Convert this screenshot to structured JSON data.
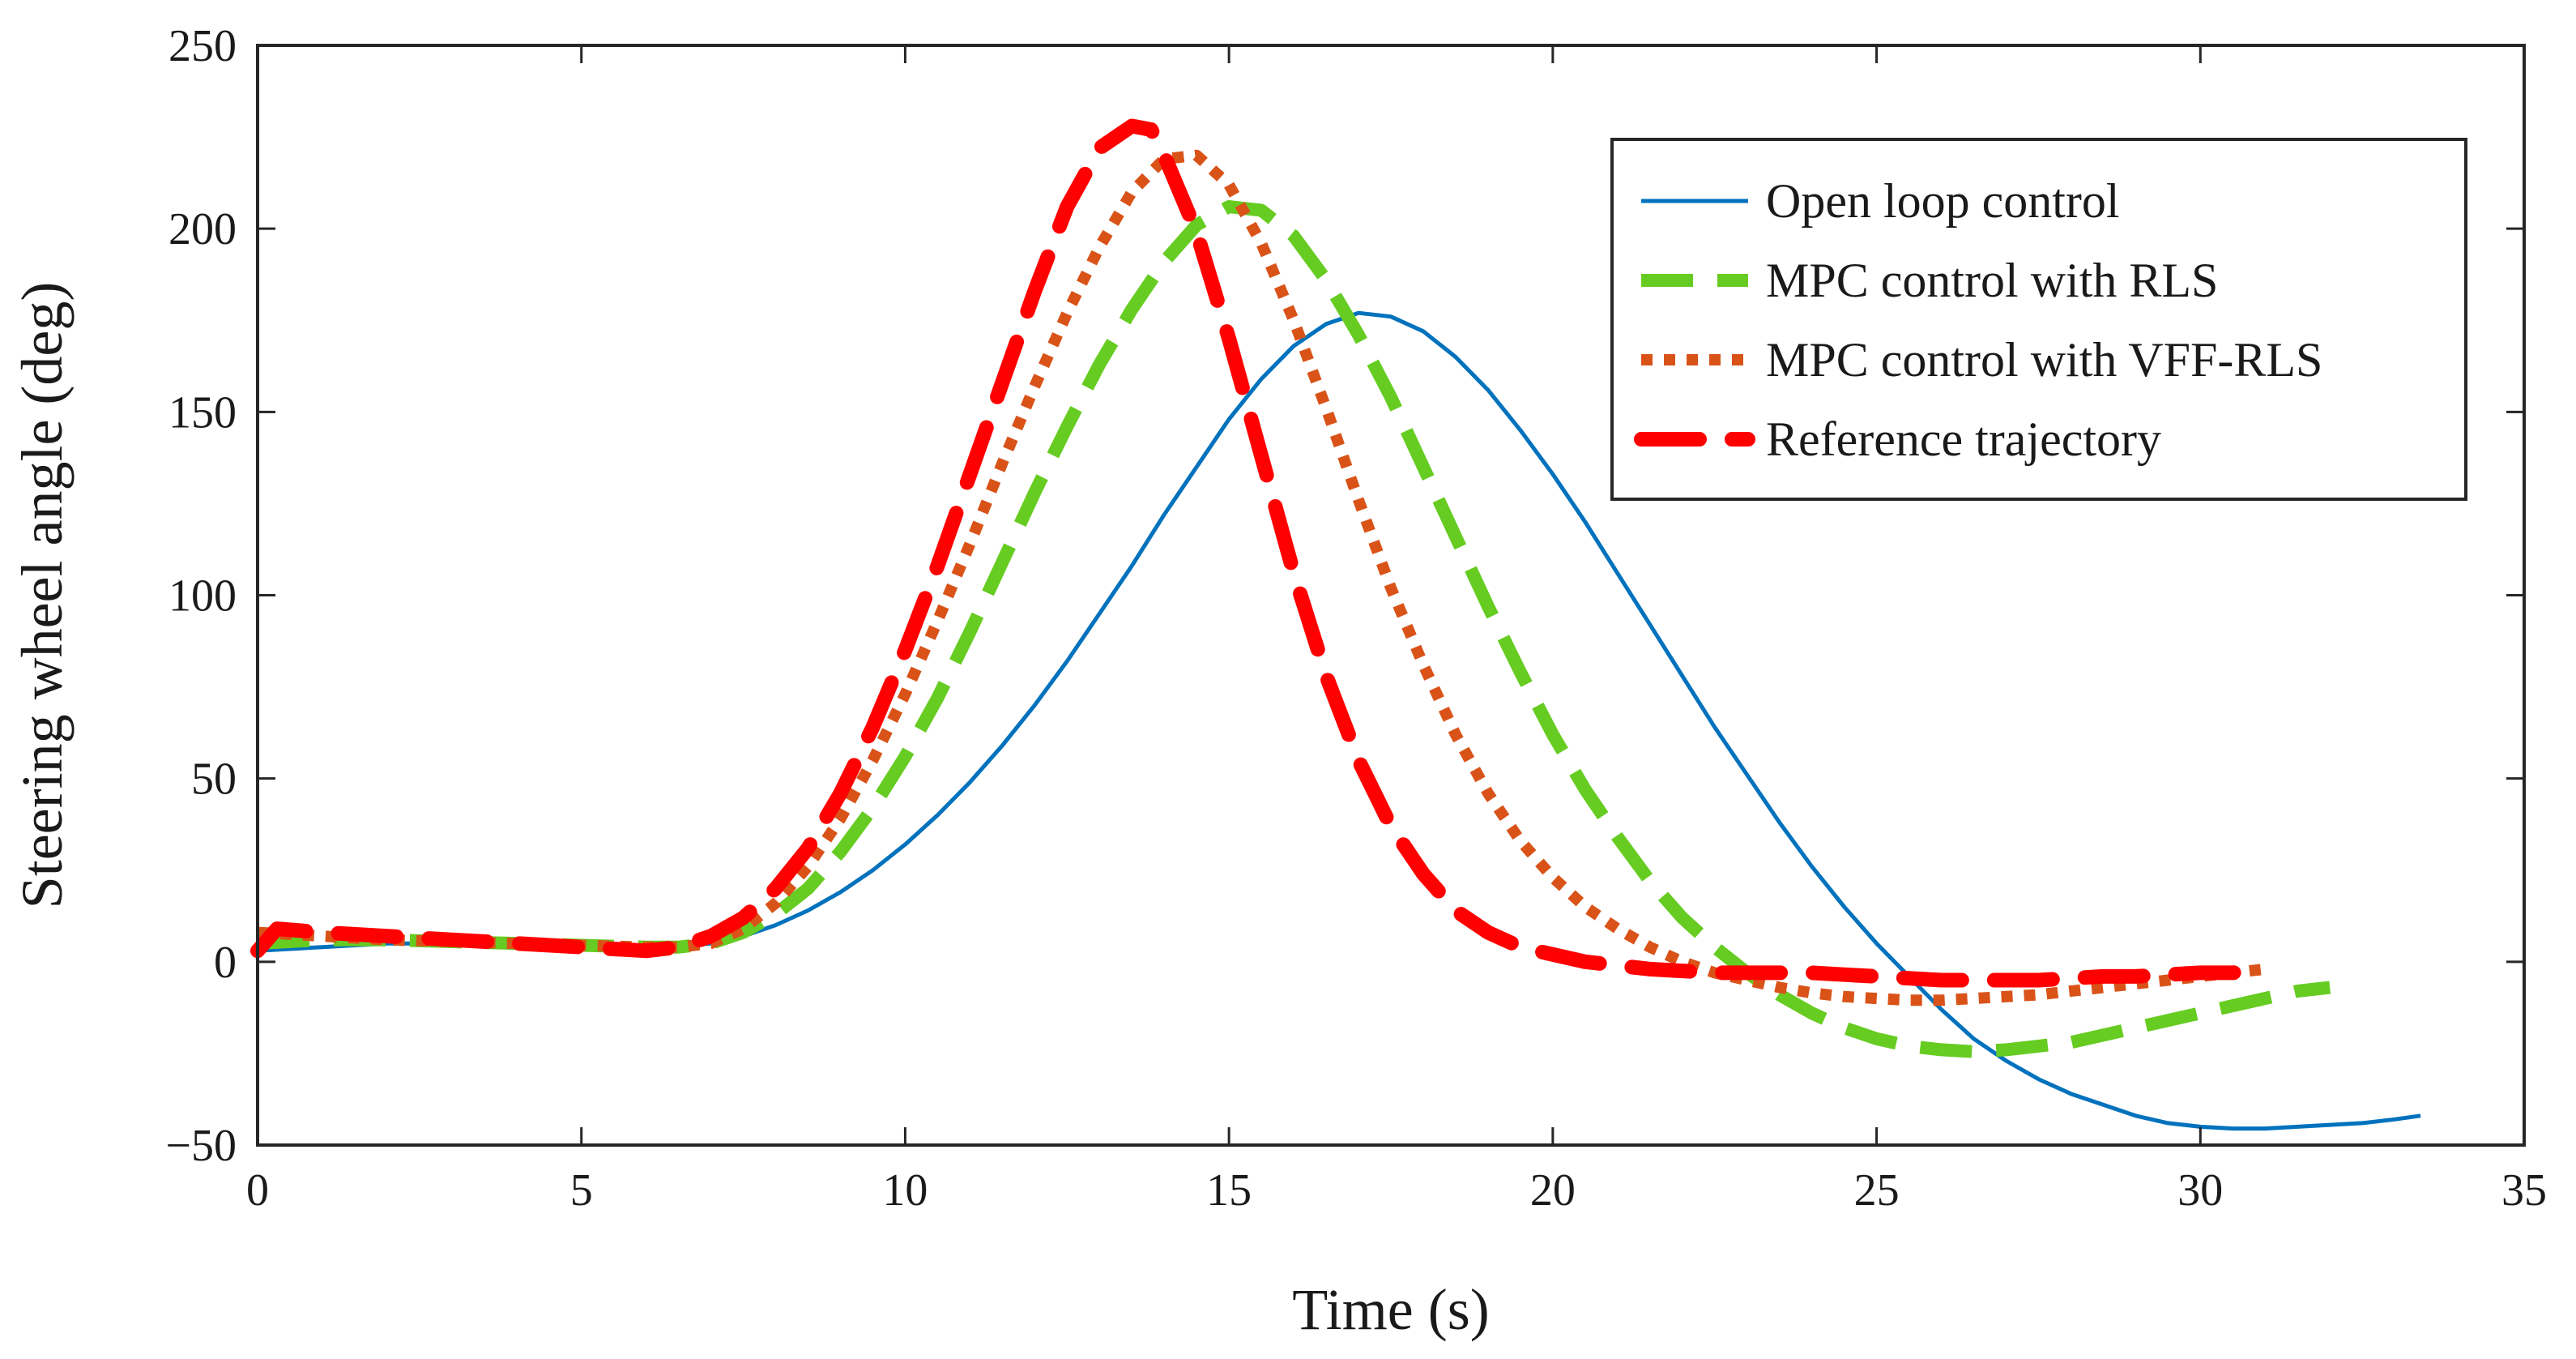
{
  "chart_data": {
    "type": "line",
    "title": "",
    "xlabel": "Time (s)",
    "ylabel": "Steering wheel angle (deg)",
    "xlim": [
      0,
      35
    ],
    "ylim": [
      -50,
      250
    ],
    "xticks": [
      0,
      5,
      10,
      15,
      20,
      25,
      30,
      35
    ],
    "yticks": [
      -50,
      0,
      50,
      100,
      150,
      200,
      250
    ],
    "xtick_labels": [
      "0",
      "5",
      "10",
      "15",
      "20",
      "25",
      "30",
      "35"
    ],
    "ytick_labels": [
      "−50",
      "0",
      "50",
      "100",
      "150",
      "200",
      "250"
    ],
    "grid": false,
    "legend_position": "top-right",
    "series": [
      {
        "name": "Open loop control",
        "color": "#0072BD",
        "style": "solid",
        "x": [
          0,
          1,
          2,
          3,
          4,
          5,
          6,
          6.5,
          7,
          7.5,
          8,
          8.5,
          9,
          9.5,
          10,
          10.5,
          11,
          11.5,
          12,
          12.5,
          13,
          13.5,
          14,
          14.5,
          15,
          15.5,
          16,
          16.5,
          17,
          17.5,
          18,
          18.5,
          19,
          19.5,
          20,
          20.5,
          21,
          21.5,
          22,
          22.5,
          23,
          23.5,
          24,
          24.5,
          25,
          25.5,
          26,
          26.5,
          27,
          27.5,
          28,
          28.5,
          29,
          29.5,
          30,
          30.5,
          31,
          31.5,
          32,
          32.5,
          33,
          33.4
        ],
        "y": [
          3,
          4,
          5,
          5,
          5,
          4.5,
          4,
          4,
          5,
          7,
          10,
          14,
          19,
          25,
          32,
          40,
          49,
          59,
          70,
          82,
          95,
          108,
          122,
          135,
          148,
          159,
          168,
          174,
          177,
          176,
          172,
          165,
          156,
          145,
          133,
          120,
          106,
          92,
          78,
          64,
          51,
          38,
          26,
          15,
          5,
          -4,
          -13,
          -21,
          -27,
          -32,
          -36,
          -39,
          -42,
          -44,
          -45,
          -45.5,
          -45.5,
          -45,
          -44.5,
          -44,
          -43,
          -42
        ]
      },
      {
        "name": "MPC control with RLS",
        "color": "#66CC22",
        "style": "dashed",
        "x": [
          0,
          1,
          2,
          3,
          4,
          5,
          6,
          6.5,
          7,
          7.5,
          8,
          8.5,
          9,
          9.5,
          10,
          10.5,
          11,
          11.5,
          12,
          12.5,
          13,
          13.5,
          14,
          14.5,
          15,
          15.5,
          16,
          16.5,
          17,
          17.5,
          18,
          18.5,
          19,
          19.5,
          20,
          20.5,
          21,
          21.5,
          22,
          22.5,
          23,
          23.5,
          24,
          24.5,
          25,
          25.5,
          26,
          26.5,
          27,
          27.5,
          28,
          28.5,
          29,
          29.5,
          30,
          30.5,
          31,
          31.5,
          32
        ],
        "y": [
          5,
          6,
          6,
          5.5,
          5,
          4.5,
          4,
          4,
          5,
          8,
          13,
          20,
          30,
          42,
          56,
          72,
          90,
          109,
          128,
          146,
          163,
          178,
          191,
          201,
          206,
          205,
          198,
          186,
          171,
          154,
          135,
          116,
          97,
          79,
          62,
          47,
          34,
          22,
          12,
          4,
          -3,
          -9,
          -14,
          -18,
          -21,
          -23,
          -24,
          -24.5,
          -24,
          -23,
          -22,
          -20,
          -18,
          -16,
          -14,
          -12,
          -10,
          -8,
          -7
        ]
      },
      {
        "name": "MPC control with VFF-RLS",
        "color": "#D95319",
        "style": "dotted",
        "x": [
          0,
          1,
          2,
          3,
          4,
          5,
          6,
          6.5,
          7,
          7.5,
          8,
          8.5,
          9,
          9.5,
          10,
          10.5,
          11,
          11.5,
          12,
          12.5,
          13,
          13.5,
          14,
          14.5,
          15,
          15.5,
          16,
          16.5,
          17,
          17.5,
          18,
          18.5,
          19,
          19.5,
          20,
          20.5,
          21,
          21.5,
          22,
          22.5,
          23,
          23.5,
          24,
          24.5,
          25,
          25.5,
          26,
          26.5,
          27,
          27.5,
          28,
          28.5,
          29,
          29.5,
          30,
          30.5,
          31
        ],
        "y": [
          8,
          7,
          6,
          5.5,
          5,
          4.5,
          4,
          4,
          5,
          9,
          16,
          26,
          39,
          55,
          73,
          93,
          114,
          136,
          157,
          177,
          195,
          210,
          219,
          220,
          212,
          196,
          175,
          151,
          126,
          102,
          81,
          62,
          46,
          33,
          23,
          15,
          9,
          4,
          0,
          -3,
          -5,
          -7,
          -8.5,
          -9.5,
          -10,
          -10.5,
          -10.5,
          -10,
          -9.5,
          -9,
          -8,
          -7,
          -6,
          -5,
          -4,
          -3,
          -2
        ]
      },
      {
        "name": "Reference trajectory",
        "color": "#FF0000",
        "style": "dashed",
        "x": [
          0,
          0.3,
          1,
          2,
          3,
          4,
          5,
          6,
          6.5,
          7,
          7.5,
          8,
          8.5,
          9,
          9.5,
          10,
          10.5,
          11,
          11.5,
          12,
          12.5,
          13,
          13.5,
          13.8,
          14,
          14.5,
          15,
          15.5,
          16,
          16.5,
          17,
          17.5,
          18,
          18.5,
          19,
          19.5,
          20,
          20.5,
          21,
          21.5,
          22,
          22.5,
          23,
          23.5,
          24,
          24.5,
          25,
          25.5,
          26,
          26.5,
          27,
          27.5,
          28,
          28.5,
          29,
          29.5,
          30,
          30.5,
          31
        ],
        "y": [
          3,
          9,
          8,
          7,
          6,
          5,
          4,
          3,
          4,
          7,
          12,
          20,
          31,
          46,
          64,
          85,
          108,
          133,
          158,
          183,
          206,
          222,
          228,
          227,
          220,
          199,
          170,
          138,
          106,
          78,
          55,
          37,
          24,
          14,
          8,
          4,
          2,
          0,
          -1,
          -2,
          -2.5,
          -3,
          -3,
          -3,
          -3,
          -3.5,
          -4,
          -4.5,
          -5,
          -5,
          -5,
          -5,
          -4.5,
          -4,
          -4,
          -3.5,
          -3,
          -3,
          -2
        ]
      }
    ]
  }
}
